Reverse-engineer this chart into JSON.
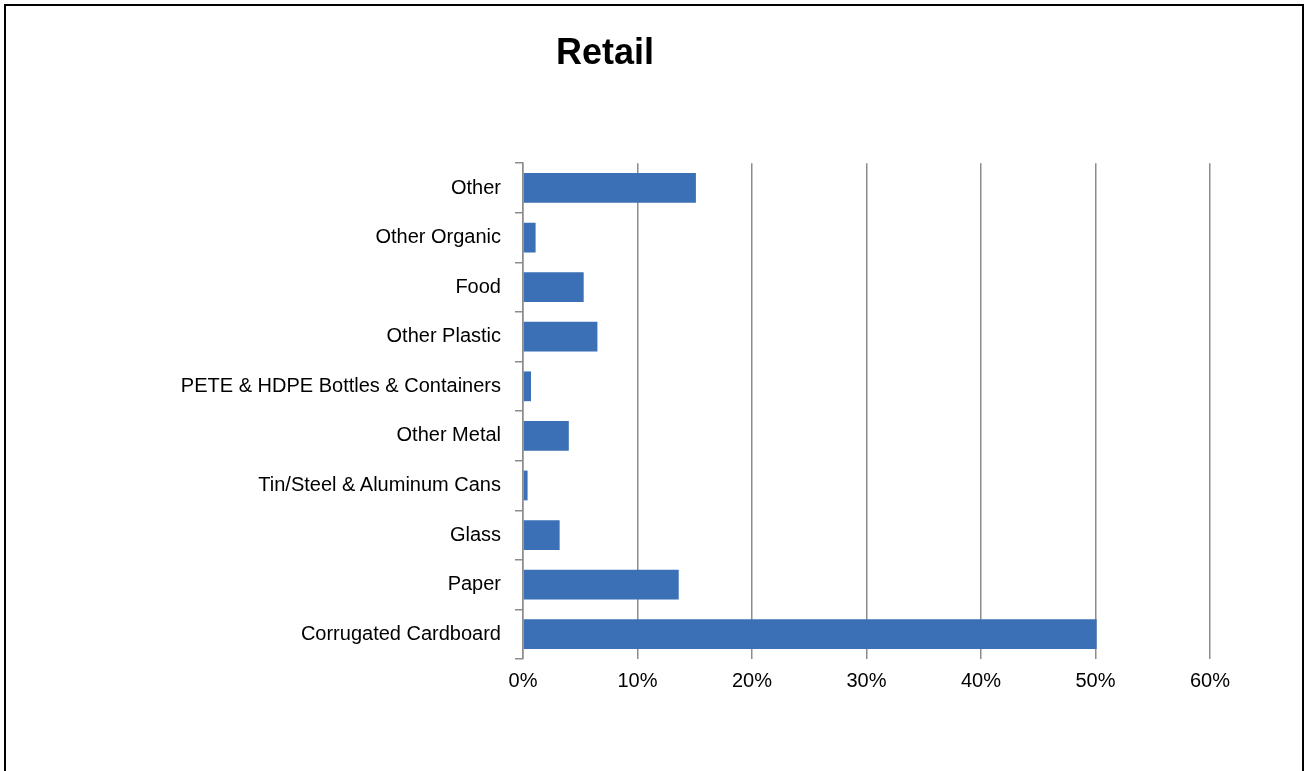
{
  "chart_data": {
    "type": "bar",
    "orientation": "horizontal",
    "title": "Retail",
    "categories": [
      "Other",
      "Other Organic",
      "Food",
      "Other Plastic",
      "PETE & HDPE Bottles & Containers",
      "Other Metal",
      "Tin/Steel & Aluminum Cans",
      "Glass",
      "Paper",
      "Corrugated Cardboard"
    ],
    "values": [
      15.1,
      1.1,
      5.3,
      6.5,
      0.7,
      4.0,
      0.4,
      3.2,
      13.6,
      50.1
    ],
    "color": "#3b6fb6",
    "xlim": [
      0,
      60
    ],
    "xticks": [
      {
        "value": 0,
        "label": "0%"
      },
      {
        "value": 10,
        "label": "10%"
      },
      {
        "value": 20,
        "label": "20%"
      },
      {
        "value": 30,
        "label": "30%"
      },
      {
        "value": 40,
        "label": "40%"
      },
      {
        "value": 50,
        "label": "50%"
      },
      {
        "value": 60,
        "label": "60%"
      }
    ],
    "grid": "x",
    "legend": false
  }
}
